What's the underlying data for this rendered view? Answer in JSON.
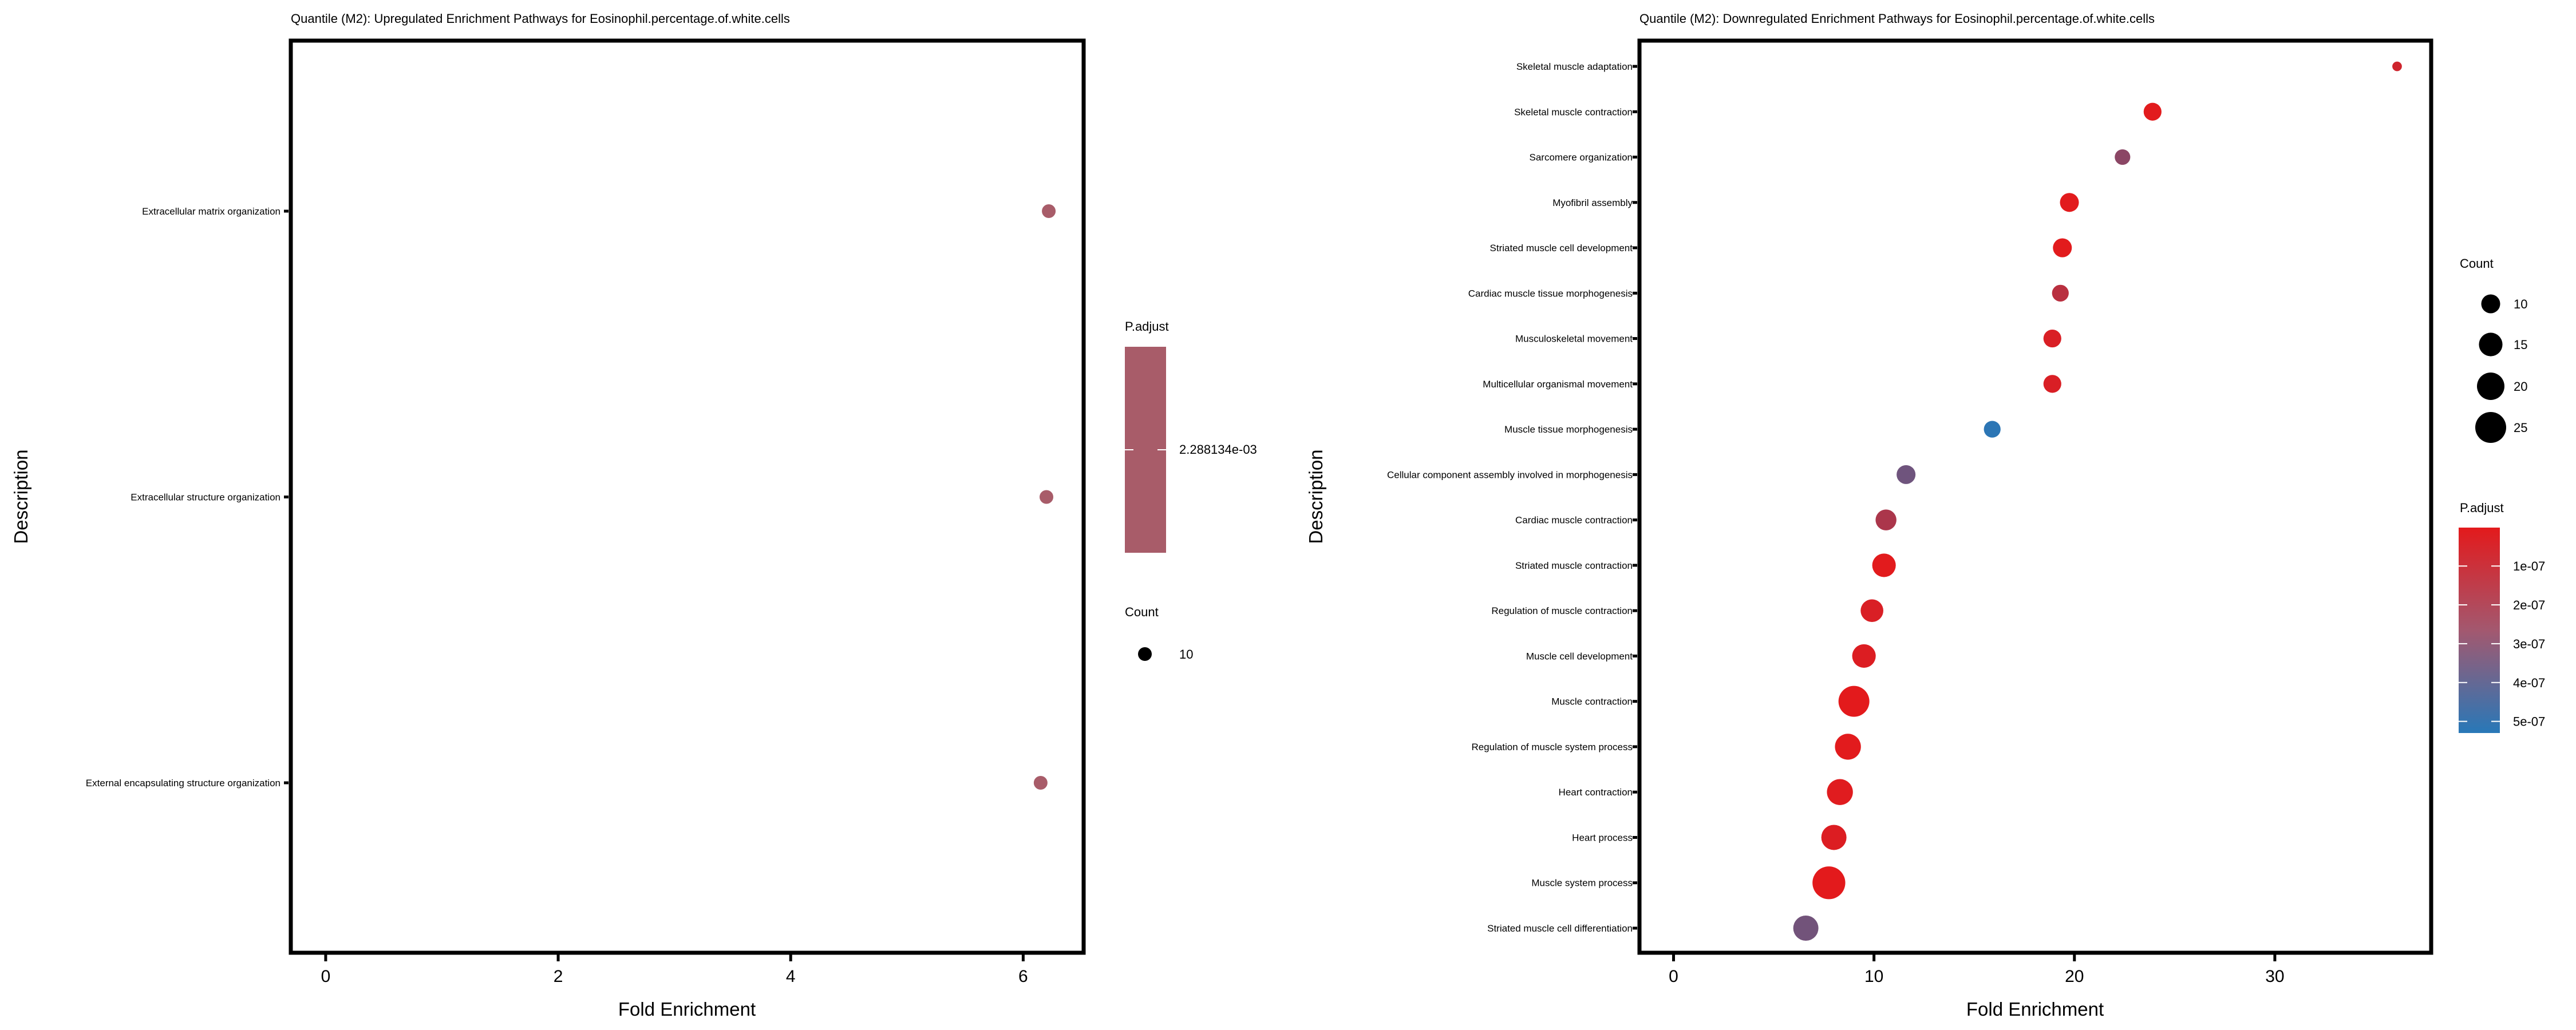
{
  "chart_data": [
    {
      "type": "scatter",
      "title": "Quantile (M2): Upregulated Enrichment Pathways for Eosinophil.percentage.of.white.cells",
      "xlabel": "Fold Enrichment",
      "ylabel": "Description",
      "xlim": [
        -0.3,
        6.52
      ],
      "xticks": [
        0,
        2,
        4,
        6
      ],
      "grid": false,
      "points": [
        {
          "label": "Extracellular matrix organization",
          "x": 6.22,
          "count": 10,
          "p_adjust": 0.002288134
        },
        {
          "label": "Extracellular structure organization",
          "x": 6.2,
          "count": 10,
          "p_adjust": 0.002288134
        },
        {
          "label": "External encapsulating structure organization",
          "x": 6.15,
          "count": 10,
          "p_adjust": 0.002288134
        }
      ],
      "legend": {
        "placement": "right",
        "color_title": "P.adjust",
        "color_labels": [
          "2.288134e-03"
        ],
        "color": "#a85c69",
        "size_title": "Count",
        "size_labels": [
          "10"
        ]
      }
    },
    {
      "type": "scatter",
      "title": "Quantile (M2): Downregulated Enrichment Pathways for Eosinophil.percentage.of.white.cells",
      "xlabel": "Fold Enrichment",
      "ylabel": "Description",
      "xlim": [
        -1.7,
        37.8
      ],
      "xticks": [
        0,
        10,
        20,
        30
      ],
      "grid": false,
      "points": [
        {
          "label": "Skeletal muscle adaptation",
          "x": 36.1,
          "count": 3,
          "p_adjust": 6e-08
        },
        {
          "label": "Skeletal muscle contraction",
          "x": 23.9,
          "count": 9,
          "p_adjust": 5e-09
        },
        {
          "label": "Sarcomere organization",
          "x": 22.4,
          "count": 7,
          "p_adjust": 2.5e-07
        },
        {
          "label": "Myofibril assembly",
          "x": 19.75,
          "count": 10,
          "p_adjust": 5e-09
        },
        {
          "label": "Striated muscle cell development",
          "x": 19.4,
          "count": 10,
          "p_adjust": 5e-09
        },
        {
          "label": "Cardiac muscle tissue morphogenesis",
          "x": 19.3,
          "count": 8,
          "p_adjust": 1.2e-07
        },
        {
          "label": "Musculoskeletal movement",
          "x": 18.9,
          "count": 9,
          "p_adjust": 3e-08
        },
        {
          "label": "Multicellular organismal movement",
          "x": 18.9,
          "count": 9,
          "p_adjust": 3e-08
        },
        {
          "label": "Muscle tissue morphogenesis",
          "x": 15.9,
          "count": 8,
          "p_adjust": 5.2e-07
        },
        {
          "label": "Cellular component assembly involved in morphogenesis",
          "x": 11.6,
          "count": 10,
          "p_adjust": 3.3e-07
        },
        {
          "label": "Cardiac muscle contraction",
          "x": 10.6,
          "count": 12,
          "p_adjust": 1.6e-07
        },
        {
          "label": "Striated muscle contraction",
          "x": 10.5,
          "count": 15,
          "p_adjust": 5e-09
        },
        {
          "label": "Regulation of muscle contraction",
          "x": 9.9,
          "count": 14,
          "p_adjust": 3e-08
        },
        {
          "label": "Muscle cell development",
          "x": 9.5,
          "count": 15,
          "p_adjust": 2e-08
        },
        {
          "label": "Muscle contraction",
          "x": 9.0,
          "count": 25,
          "p_adjust": 2e-09
        },
        {
          "label": "Regulation of muscle system process",
          "x": 8.7,
          "count": 18,
          "p_adjust": 5e-09
        },
        {
          "label": "Heart contraction",
          "x": 8.3,
          "count": 18,
          "p_adjust": 1e-08
        },
        {
          "label": "Heart process",
          "x": 8.0,
          "count": 17,
          "p_adjust": 2e-08
        },
        {
          "label": "Muscle system process",
          "x": 7.75,
          "count": 28,
          "p_adjust": 2e-09
        },
        {
          "label": "Striated muscle cell differentiation",
          "x": 6.6,
          "count": 17,
          "p_adjust": 3.2e-07
        }
      ],
      "legend": {
        "placement": "right",
        "size_title": "Count",
        "size_values": [
          10,
          15,
          20,
          25
        ],
        "size_labels": [
          "10",
          "15",
          "20",
          "25"
        ],
        "color_title": "P.adjust",
        "color_range": [
          1e-09,
          5.3e-07
        ],
        "color_ticks": [
          1e-07,
          2e-07,
          3e-07,
          4e-07,
          5e-07
        ],
        "color_labels": [
          "1e-07",
          "2e-07",
          "3e-07",
          "4e-07",
          "5e-07"
        ],
        "color_low": "#e31a1c",
        "color_high": "#2878b8"
      }
    }
  ]
}
